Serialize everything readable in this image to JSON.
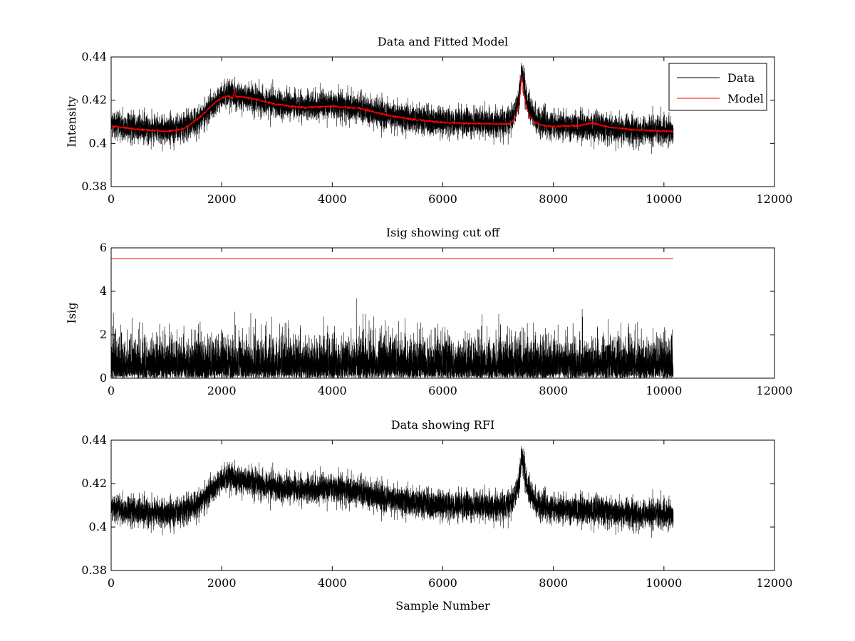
{
  "chart_data": [
    {
      "type": "line",
      "title": "Data and Fitted Model",
      "xlabel": "",
      "ylabel": "Intensity",
      "xlim": [
        0,
        12000
      ],
      "ylim": [
        0.38,
        0.44
      ],
      "xticks": [
        0,
        2000,
        4000,
        6000,
        8000,
        10000,
        12000
      ],
      "yticks": [
        0.38,
        0.4,
        0.42,
        0.44
      ],
      "xtick_labels": [
        "0",
        "2000",
        "4000",
        "6000",
        "8000",
        "10000",
        "12000"
      ],
      "ytick_labels": [
        "0.38",
        "0.4",
        "0.42",
        "0.44"
      ],
      "grid": false,
      "legend": "top-right",
      "n_samples": 10170,
      "series": [
        {
          "name": "Data",
          "color": "#000000",
          "kind": "noisy",
          "noise_sd": 0.0032,
          "baseline": {
            "x": [
              0,
              500,
              1000,
              1300,
              1600,
              1900,
              2100,
              2300,
              2600,
              3000,
              3500,
              4000,
              4500,
              5000,
              5500,
              6000,
              6500,
              7000,
              7200,
              7300,
              7380,
              7430,
              7480,
              7550,
              7650,
              7800,
              8000,
              8500,
              9000,
              9500,
              10170
            ],
            "y": [
              0.408,
              0.407,
              0.406,
              0.407,
              0.412,
              0.419,
              0.423,
              0.422,
              0.421,
              0.418,
              0.417,
              0.418,
              0.416,
              0.413,
              0.411,
              0.41,
              0.41,
              0.409,
              0.41,
              0.414,
              0.422,
              0.433,
              0.424,
              0.417,
              0.412,
              0.409,
              0.408,
              0.408,
              0.407,
              0.406,
              0.406
            ]
          }
        },
        {
          "name": "Model",
          "color": "#ff0000",
          "kind": "smooth",
          "points": {
            "x": [
              0,
              500,
              1000,
              1300,
              1600,
              1900,
              2100,
              2200,
              2230,
              2260,
              2400,
              2600,
              3000,
              3500,
              4000,
              4500,
              5000,
              5500,
              6000,
              6500,
              7000,
              7200,
              7300,
              7380,
              7430,
              7480,
              7550,
              7650,
              7800,
              8000,
              8500,
              8700,
              9000,
              9500,
              10170
            ],
            "y": [
              0.408,
              0.4065,
              0.4055,
              0.4065,
              0.412,
              0.4195,
              0.422,
              0.421,
              0.4245,
              0.4215,
              0.4215,
              0.4205,
              0.418,
              0.4165,
              0.4172,
              0.4162,
              0.413,
              0.411,
              0.4097,
              0.4092,
              0.409,
              0.4092,
              0.411,
              0.418,
              0.4315,
              0.421,
              0.4135,
              0.41,
              0.4083,
              0.4078,
              0.4083,
              0.4095,
              0.4075,
              0.4062,
              0.4055
            ]
          }
        }
      ]
    },
    {
      "type": "line",
      "title": "Isig showing cut off",
      "xlabel": "",
      "ylabel": "Isig",
      "xlim": [
        0,
        12000
      ],
      "ylim": [
        0,
        6
      ],
      "xticks": [
        0,
        2000,
        4000,
        6000,
        8000,
        10000,
        12000
      ],
      "yticks": [
        0,
        2,
        4,
        6
      ],
      "xtick_labels": [
        "0",
        "2000",
        "4000",
        "6000",
        "8000",
        "10000",
        "12000"
      ],
      "ytick_labels": [
        "0",
        "2",
        "4",
        "6"
      ],
      "grid": false,
      "n_samples": 10170,
      "series": [
        {
          "color": "#000000",
          "kind": "abs-noise",
          "scale": 0.85,
          "max": 3.8
        },
        {
          "color": "#ff0000",
          "kind": "hline",
          "x": [
            0,
            10170
          ],
          "y": [
            5.5,
            5.5
          ]
        }
      ]
    },
    {
      "type": "line",
      "title": "Data showing RFI",
      "xlabel": "Sample Number",
      "ylabel": "",
      "xlim": [
        0,
        12000
      ],
      "ylim": [
        0.38,
        0.44
      ],
      "xticks": [
        0,
        2000,
        4000,
        6000,
        8000,
        10000,
        12000
      ],
      "yticks": [
        0.38,
        0.4,
        0.42,
        0.44
      ],
      "xtick_labels": [
        "0",
        "2000",
        "4000",
        "6000",
        "8000",
        "10000",
        "12000"
      ],
      "ytick_labels": [
        "0.38",
        "0.4",
        "0.42",
        "0.44"
      ],
      "grid": false,
      "n_samples": 10170,
      "series": [
        {
          "color": "#000000",
          "kind": "noisy",
          "noise_sd": 0.0032,
          "baseline": {
            "x": [
              0,
              500,
              1000,
              1300,
              1600,
              1900,
              2100,
              2300,
              2600,
              3000,
              3500,
              4000,
              4500,
              5000,
              5500,
              6000,
              6500,
              7000,
              7200,
              7300,
              7380,
              7430,
              7480,
              7550,
              7650,
              7800,
              8000,
              8500,
              9000,
              9500,
              10170
            ],
            "y": [
              0.408,
              0.407,
              0.406,
              0.407,
              0.412,
              0.419,
              0.423,
              0.422,
              0.421,
              0.418,
              0.417,
              0.418,
              0.416,
              0.413,
              0.411,
              0.41,
              0.41,
              0.409,
              0.41,
              0.414,
              0.422,
              0.433,
              0.424,
              0.417,
              0.412,
              0.409,
              0.408,
              0.408,
              0.407,
              0.406,
              0.406
            ]
          }
        }
      ]
    }
  ]
}
